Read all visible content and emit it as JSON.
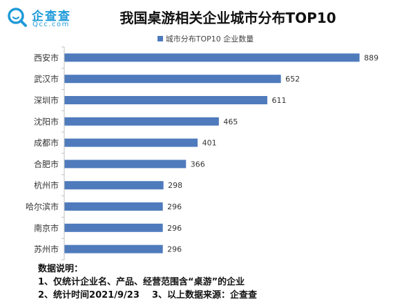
{
  "brand": {
    "name": "企查查",
    "domain": "Qcc.com",
    "color": "#1f9ad8"
  },
  "header": {
    "title": "我国桌游相关企业城市分布TOP10"
  },
  "notes": {
    "heading": "数据说明：",
    "line1": "1、仅统计企业名、产品、经营范围含“桌游”的企业",
    "line2": "2、统计时间2021/9/23    3、以上数据来源：企查查"
  },
  "chart_data": {
    "type": "bar",
    "orientation": "horizontal",
    "title": "我国桌游相关企业城市分布TOP10",
    "legend": {
      "position": "top",
      "entries": [
        "城市分布TOP10 企业数量"
      ]
    },
    "categories": [
      "西安市",
      "武汉市",
      "深圳市",
      "沈阳市",
      "成都市",
      "合肥市",
      "杭州市",
      "哈尔滨市",
      "南京市",
      "苏州市"
    ],
    "series": [
      {
        "name": "城市分布TOP10 企业数量",
        "color": "#4f7bbd",
        "values": [
          889,
          652,
          611,
          465,
          401,
          366,
          298,
          296,
          296,
          296
        ]
      }
    ],
    "xlim": [
      0,
      1000
    ],
    "grid": false,
    "data_labels": true
  }
}
